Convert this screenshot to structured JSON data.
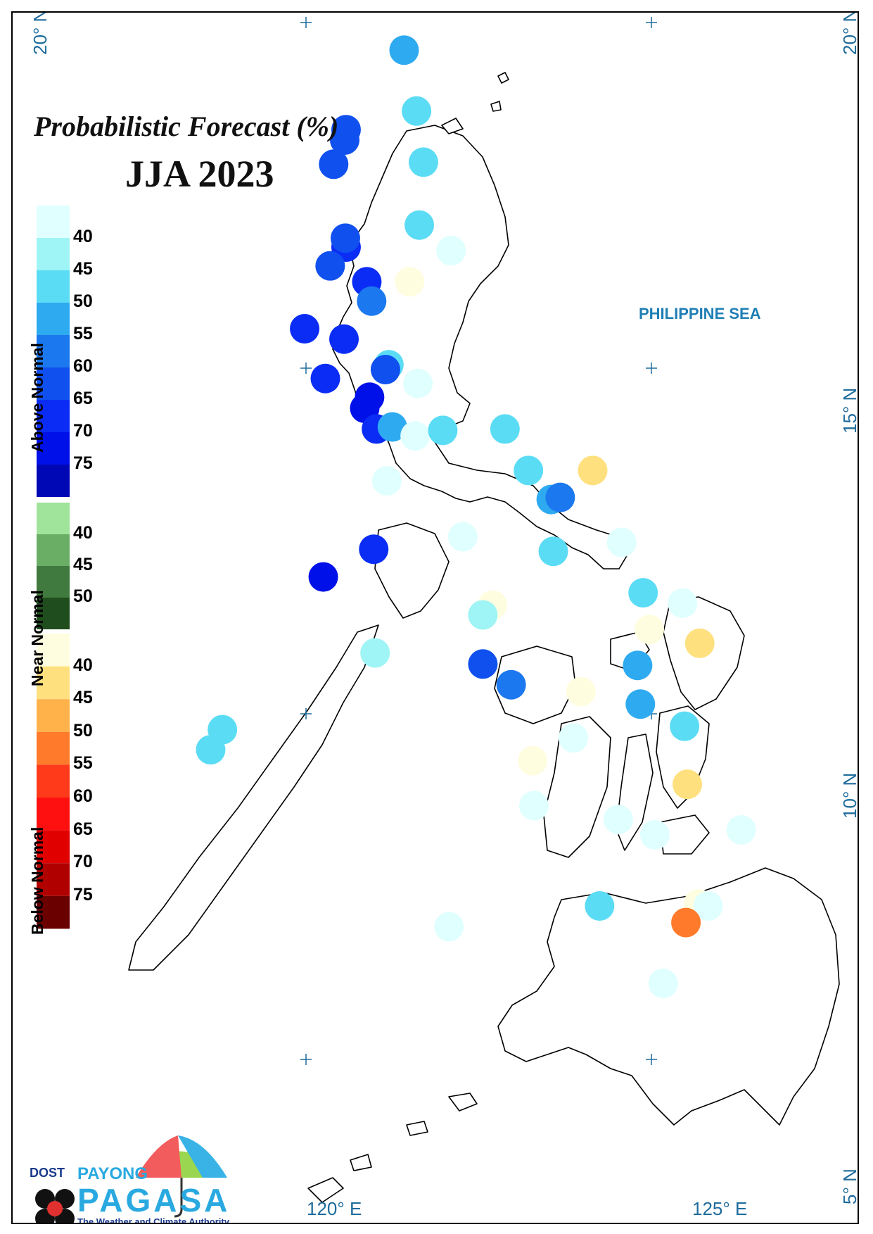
{
  "title": "Probabilistic Forecast (%)",
  "subtitle": "JJA 2023",
  "sea_label": "PHILIPPINE SEA",
  "axes": {
    "lat_labels": [
      "20° N",
      "20° N",
      "15° N",
      "10° N",
      "5° N"
    ],
    "lon_labels": [
      "120° E",
      "125° E"
    ]
  },
  "legend": {
    "above": {
      "title": "Above Normal",
      "ticks": [
        "40",
        "45",
        "50",
        "55",
        "60",
        "65",
        "70",
        "75"
      ],
      "colors": [
        "#e0ffff",
        "#9ff5f5",
        "#5bdcf5",
        "#2eaaf0",
        "#1c78ee",
        "#1050ee",
        "#0a2cf5",
        "#0010e8",
        "#0008b5"
      ]
    },
    "near": {
      "title": "Near Normal",
      "ticks": [
        "40",
        "45",
        "50"
      ],
      "colors": [
        "#a0e39a",
        "#6aae66",
        "#407a3e",
        "#1f4d1e"
      ]
    },
    "below": {
      "title": "Below Normal",
      "ticks": [
        "40",
        "45",
        "50",
        "55",
        "60",
        "65",
        "70",
        "75"
      ],
      "colors": [
        "#fffde0",
        "#ffe07f",
        "#ffb24a",
        "#ff7a2a",
        "#ff3a1a",
        "#ff1010",
        "#e00000",
        "#b00000",
        "#6a0000"
      ]
    }
  },
  "stations": [
    {
      "lon": 121.42,
      "lat": 19.6,
      "cat": "above",
      "p": 50
    },
    {
      "lon": 121.6,
      "lat": 18.72,
      "cat": "above",
      "p": 45
    },
    {
      "lon": 120.58,
      "lat": 18.45,
      "cat": "above",
      "p": 60
    },
    {
      "lon": 120.56,
      "lat": 18.3,
      "cat": "above",
      "p": 60
    },
    {
      "lon": 121.7,
      "lat": 17.98,
      "cat": "above",
      "p": 45
    },
    {
      "lon": 120.4,
      "lat": 17.95,
      "cat": "above",
      "p": 60
    },
    {
      "lon": 121.64,
      "lat": 17.07,
      "cat": "above",
      "p": 45
    },
    {
      "lon": 120.58,
      "lat": 16.75,
      "cat": "above",
      "p": 65
    },
    {
      "lon": 120.57,
      "lat": 16.88,
      "cat": "above",
      "p": 60
    },
    {
      "lon": 122.1,
      "lat": 16.7,
      "cat": "above",
      "p": 35
    },
    {
      "lon": 120.35,
      "lat": 16.48,
      "cat": "above",
      "p": 60
    },
    {
      "lon": 120.88,
      "lat": 16.25,
      "cat": "above",
      "p": 65
    },
    {
      "lon": 121.5,
      "lat": 16.25,
      "cat": "below",
      "p": 35
    },
    {
      "lon": 120.95,
      "lat": 15.97,
      "cat": "above",
      "p": 55
    },
    {
      "lon": 119.98,
      "lat": 15.57,
      "cat": "above",
      "p": 65
    },
    {
      "lon": 120.55,
      "lat": 15.42,
      "cat": "above",
      "p": 65
    },
    {
      "lon": 121.2,
      "lat": 15.05,
      "cat": "above",
      "p": 45
    },
    {
      "lon": 121.15,
      "lat": 14.98,
      "cat": "above",
      "p": 60
    },
    {
      "lon": 121.62,
      "lat": 14.78,
      "cat": "above",
      "p": 35
    },
    {
      "lon": 120.28,
      "lat": 14.85,
      "cat": "above",
      "p": 65
    },
    {
      "lon": 120.92,
      "lat": 14.58,
      "cat": "above",
      "p": 70
    },
    {
      "lon": 120.85,
      "lat": 14.42,
      "cat": "above",
      "p": 70
    },
    {
      "lon": 121.02,
      "lat": 14.12,
      "cat": "above",
      "p": 65
    },
    {
      "lon": 121.25,
      "lat": 14.15,
      "cat": "above",
      "p": 50
    },
    {
      "lon": 121.58,
      "lat": 14.02,
      "cat": "above",
      "p": 35
    },
    {
      "lon": 121.98,
      "lat": 14.1,
      "cat": "above",
      "p": 45
    },
    {
      "lon": 122.88,
      "lat": 14.12,
      "cat": "above",
      "p": 45
    },
    {
      "lon": 123.22,
      "lat": 13.52,
      "cat": "above",
      "p": 45
    },
    {
      "lon": 124.15,
      "lat": 13.52,
      "cat": "below",
      "p": 42
    },
    {
      "lon": 121.17,
      "lat": 13.37,
      "cat": "above",
      "p": 35
    },
    {
      "lon": 123.55,
      "lat": 13.1,
      "cat": "above",
      "p": 50
    },
    {
      "lon": 123.68,
      "lat": 13.13,
      "cat": "above",
      "p": 55
    },
    {
      "lon": 122.27,
      "lat": 12.56,
      "cat": "above",
      "p": 35
    },
    {
      "lon": 124.57,
      "lat": 12.48,
      "cat": "above",
      "p": 35
    },
    {
      "lon": 120.98,
      "lat": 12.38,
      "cat": "above",
      "p": 65
    },
    {
      "lon": 123.58,
      "lat": 12.35,
      "cat": "above",
      "p": 45
    },
    {
      "lon": 120.25,
      "lat": 11.98,
      "cat": "above",
      "p": 70
    },
    {
      "lon": 124.88,
      "lat": 11.75,
      "cat": "above",
      "p": 45
    },
    {
      "lon": 125.45,
      "lat": 11.6,
      "cat": "above",
      "p": 35
    },
    {
      "lon": 122.7,
      "lat": 11.57,
      "cat": "below",
      "p": 35
    },
    {
      "lon": 122.56,
      "lat": 11.43,
      "cat": "above",
      "p": 40
    },
    {
      "lon": 124.97,
      "lat": 11.22,
      "cat": "below",
      "p": 35
    },
    {
      "lon": 125.7,
      "lat": 11.02,
      "cat": "below",
      "p": 42
    },
    {
      "lon": 121.0,
      "lat": 10.88,
      "cat": "above",
      "p": 40
    },
    {
      "lon": 124.8,
      "lat": 10.7,
      "cat": "above",
      "p": 50
    },
    {
      "lon": 122.56,
      "lat": 10.72,
      "cat": "above",
      "p": 60
    },
    {
      "lon": 122.97,
      "lat": 10.42,
      "cat": "above",
      "p": 55
    },
    {
      "lon": 123.98,
      "lat": 10.32,
      "cat": "below",
      "p": 35
    },
    {
      "lon": 124.84,
      "lat": 10.14,
      "cat": "above",
      "p": 50
    },
    {
      "lon": 125.48,
      "lat": 9.82,
      "cat": "above",
      "p": 45
    },
    {
      "lon": 118.79,
      "lat": 9.77,
      "cat": "above",
      "p": 45
    },
    {
      "lon": 118.62,
      "lat": 9.48,
      "cat": "above",
      "p": 45
    },
    {
      "lon": 123.87,
      "lat": 9.65,
      "cat": "above",
      "p": 35
    },
    {
      "lon": 123.28,
      "lat": 9.32,
      "cat": "below",
      "p": 35
    },
    {
      "lon": 125.52,
      "lat": 8.98,
      "cat": "below",
      "p": 42
    },
    {
      "lon": 123.3,
      "lat": 8.67,
      "cat": "above",
      "p": 35
    },
    {
      "lon": 124.52,
      "lat": 8.47,
      "cat": "above",
      "p": 35
    },
    {
      "lon": 125.05,
      "lat": 8.25,
      "cat": "above",
      "p": 35
    },
    {
      "lon": 126.3,
      "lat": 8.32,
      "cat": "above",
      "p": 35
    },
    {
      "lon": 124.25,
      "lat": 7.22,
      "cat": "above",
      "p": 45
    },
    {
      "lon": 125.68,
      "lat": 7.25,
      "cat": "below",
      "p": 35
    },
    {
      "lon": 125.82,
      "lat": 7.22,
      "cat": "above",
      "p": 35
    },
    {
      "lon": 125.5,
      "lat": 6.98,
      "cat": "below",
      "p": 50
    },
    {
      "lon": 122.07,
      "lat": 6.92,
      "cat": "above",
      "p": 35
    },
    {
      "lon": 125.17,
      "lat": 6.1,
      "cat": "above",
      "p": 35
    }
  ]
}
